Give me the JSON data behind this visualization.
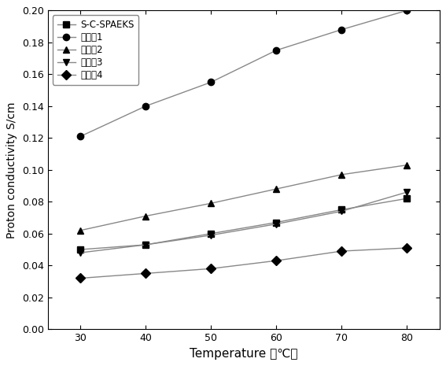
{
  "x": [
    30,
    40,
    50,
    60,
    70,
    80
  ],
  "series": [
    {
      "label": "S-C-SPAEKS",
      "marker": "s",
      "values": [
        0.05,
        0.053,
        0.06,
        0.067,
        0.075,
        0.082
      ]
    },
    {
      "label": "实施例1",
      "marker": "o",
      "values": [
        0.121,
        0.14,
        0.155,
        0.175,
        0.188,
        0.2
      ]
    },
    {
      "label": "实施例2",
      "marker": "^",
      "values": [
        0.062,
        0.071,
        0.079,
        0.088,
        0.097,
        0.103
      ]
    },
    {
      "label": "实施例3",
      "marker": "v",
      "values": [
        0.048,
        0.053,
        0.059,
        0.066,
        0.074,
        0.086
      ]
    },
    {
      "label": "实施例4",
      "marker": "D",
      "values": [
        0.032,
        0.035,
        0.038,
        0.043,
        0.049,
        0.051
      ]
    }
  ],
  "xlabel": "Temperature （℃）",
  "ylabel": "Proton conductivity S/cm",
  "xlim": [
    25,
    85
  ],
  "ylim": [
    0.0,
    0.2
  ],
  "yticks": [
    0.0,
    0.02,
    0.04,
    0.06,
    0.08,
    0.1,
    0.12,
    0.14,
    0.16,
    0.18,
    0.2
  ],
  "xticks": [
    30,
    40,
    50,
    60,
    70,
    80
  ],
  "background_color": "#ffffff",
  "line_color": "#888888",
  "marker_color": "#000000",
  "markersize": 6,
  "linewidth": 1.0
}
